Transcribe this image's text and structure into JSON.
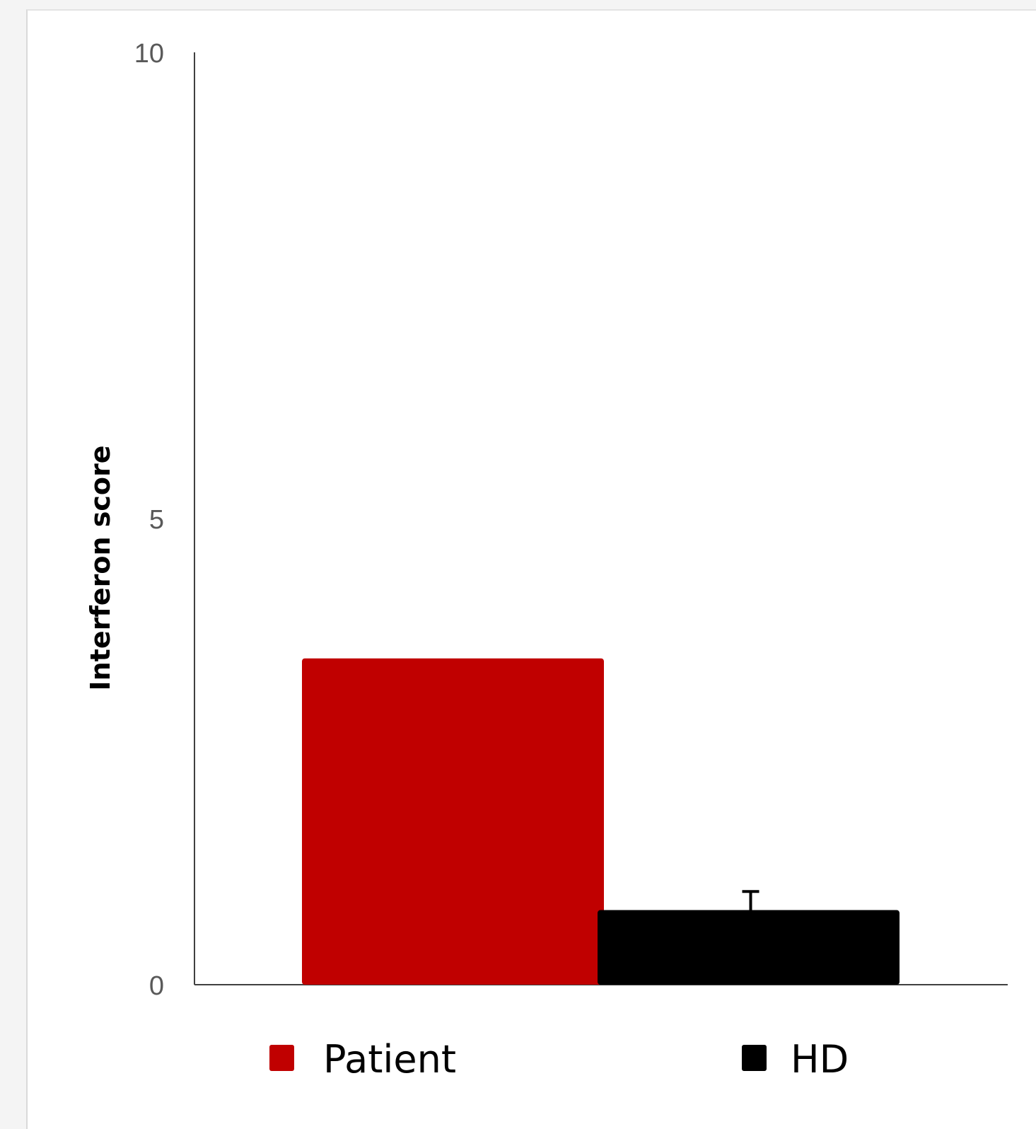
{
  "chart_data": {
    "type": "bar",
    "categories": [
      "Patient",
      "HD"
    ],
    "values": [
      3.5,
      0.8
    ],
    "error_bars": [
      null,
      0.2
    ],
    "colors": [
      "#c00000",
      "#000000"
    ],
    "ylabel": "Interferon score",
    "xlabel": "",
    "ylim": [
      0,
      10
    ],
    "yticks": [
      "0",
      "5",
      "10"
    ],
    "grid": false,
    "legend": {
      "position": "bottom",
      "entries": [
        {
          "label": "Patient",
          "color": "#c00000"
        },
        {
          "label": "HD",
          "color": "#000000"
        }
      ]
    }
  }
}
